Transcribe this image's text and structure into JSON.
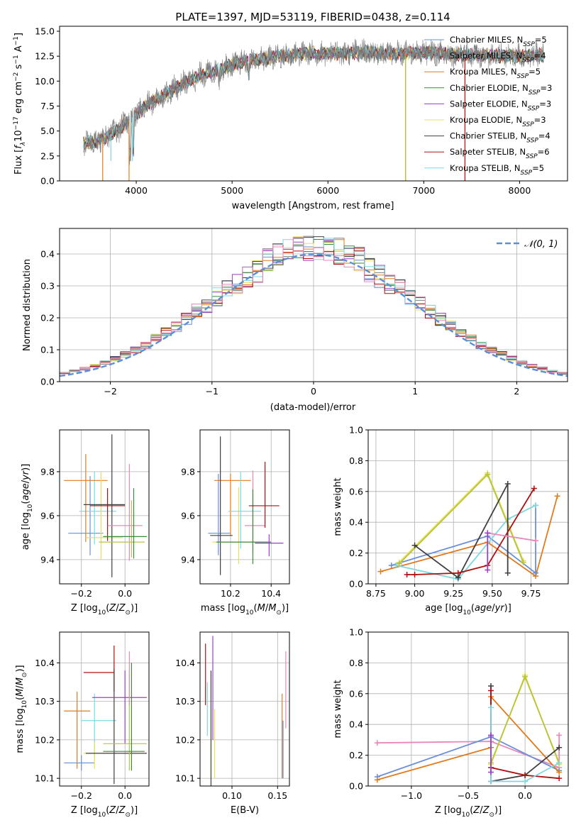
{
  "figure": {
    "title": "PLATE=1397, MJD=53119, FIBERID=0438, z=0.114"
  },
  "colors": {
    "Chabrier MILES": "#6a8fd6",
    "Salpeter MILES": "#7f7f7f",
    "Kroupa MILES": "#e07b1f",
    "Chabrier ELODIE": "#3a8a3a",
    "Salpeter ELODIE": "#9b3fc8",
    "Kroupa ELODIE": "#e8e05a",
    "Chabrier STELIB": "#404040",
    "Salpeter STELIB": "#b01010",
    "Kroupa STELIB": "#7fd7e0",
    "pink": "#e887b8",
    "olive": "#b8c43a",
    "gauss": "#5b8fd6"
  },
  "chart_data": [
    {
      "id": "spectrum",
      "type": "line",
      "xlabel": "wavelength [Angstrom, rest frame]",
      "xlim": [
        3200,
        8500
      ],
      "ylim": [
        0,
        15.5
      ],
      "xticks": [
        4000,
        5000,
        6000,
        7000,
        8000
      ],
      "yticks": [
        0.0,
        2.5,
        5.0,
        7.5,
        10.0,
        12.5,
        15.0
      ],
      "grid": false,
      "legend_placement": "right",
      "legend": [
        {
          "label": "Chabrier MILES, N",
          "n": "5",
          "color": "#6a8fd6"
        },
        {
          "label": "Salpeter MILES, N",
          "n": "4",
          "color": "#7f7f7f"
        },
        {
          "label": "Kroupa MILES, N",
          "n": "5",
          "color": "#e07b1f"
        },
        {
          "label": "Chabrier ELODIE, N",
          "n": "3",
          "color": "#3a8a3a"
        },
        {
          "label": "Salpeter ELODIE, N",
          "n": "3",
          "color": "#9b3fc8"
        },
        {
          "label": "Kroupa ELODIE, N",
          "n": "3",
          "color": "#e8e05a"
        },
        {
          "label": "Chabrier STELIB, N",
          "n": "4",
          "color": "#404040"
        },
        {
          "label": "Salpeter STELIB, N",
          "n": "6",
          "color": "#b01010"
        },
        {
          "label": "Kroupa STELIB, N",
          "n": "5",
          "color": "#7fd7e0"
        }
      ],
      "continuum": {
        "x": [
          3450,
          3600,
          3800,
          3950,
          4100,
          4300,
          4500,
          4700,
          4900,
          5100,
          5300,
          5500,
          5800,
          6100,
          6400,
          6700,
          7000,
          7300,
          7600,
          7900,
          8250
        ],
        "y": [
          3.8,
          4.0,
          5.0,
          6.3,
          7.5,
          8.7,
          9.8,
          10.7,
          11.3,
          11.9,
          12.2,
          12.5,
          12.8,
          12.8,
          12.9,
          12.7,
          12.9,
          12.7,
          12.6,
          12.5,
          12.6
        ]
      },
      "dips": [
        {
          "x": 3650,
          "y": 0.0
        },
        {
          "x": 3735,
          "y": 2.0
        },
        {
          "x": 3925,
          "y": 0.0
        },
        {
          "x": 3960,
          "y": 2.0
        },
        {
          "x": 6810,
          "y": 0.0
        },
        {
          "x": 7430,
          "y": 0.0
        }
      ]
    },
    {
      "id": "residuals",
      "type": "histogram",
      "xlabel": "(data-model)/error",
      "ylabel": "Normed distribution",
      "xlim": [
        -2.5,
        2.5
      ],
      "ylim": [
        0,
        0.48
      ],
      "xticks": [
        -2,
        -1,
        0,
        1,
        2
      ],
      "yticks": [
        0.0,
        0.1,
        0.2,
        0.3,
        0.4
      ],
      "grid": true,
      "bin_width": 0.1,
      "gauss_label": "(0, 1)",
      "legend_placement": "top-right"
    },
    {
      "id": "age-vs-Z",
      "type": "scatter",
      "xlabel": "Z [log",
      "ylabel": "age  [log",
      "xlim": [
        -0.3,
        0.11
      ],
      "ylim": [
        9.29,
        9.99
      ],
      "xticks": [
        -0.2,
        0.0
      ],
      "yticks": [
        9.4,
        9.6,
        9.8
      ],
      "grid": true,
      "points": [
        {
          "x": -0.16,
          "y": 9.52,
          "ex": [
            0.1,
            0.06
          ],
          "ey": [
            0.1,
            0.26
          ],
          "color": "#6a8fd6"
        },
        {
          "x": -0.14,
          "y": 9.62,
          "ex": [
            0.07,
            0.1
          ],
          "ey": [
            0.15,
            0.18
          ],
          "color": "#7fd7e0"
        },
        {
          "x": -0.18,
          "y": 9.76,
          "ex": [
            0.1,
            0.1
          ],
          "ey": [
            0.28,
            0.12
          ],
          "color": "#e07b1f"
        },
        {
          "x": -0.11,
          "y": 9.5,
          "ex": [
            0.07,
            0.1
          ],
          "ey": [
            0.1,
            0.3
          ],
          "color": "#e8e05a"
        },
        {
          "x": -0.06,
          "y": 9.65,
          "ex": [
            0.13,
            0.06
          ],
          "ey": [
            0.33,
            0.32
          ],
          "color": "#404040"
        },
        {
          "x": -0.08,
          "y": 9.645,
          "ex": [
            0.08,
            0.08
          ],
          "ey": [
            0.16,
            0.08
          ],
          "color": "#b01010"
        },
        {
          "x": 0.02,
          "y": 9.555,
          "ex": [
            0.1,
            0.06
          ],
          "ey": [
            0.16,
            0.28
          ],
          "color": "#e887b8"
        },
        {
          "x": 0.03,
          "y": 9.48,
          "ex": [
            0.15,
            0.06
          ],
          "ey": [
            0.07,
            0.19
          ],
          "color": "#b8c43a"
        },
        {
          "x": 0.04,
          "y": 9.505,
          "ex": [
            0.14,
            0.06
          ],
          "ey": [
            0.1,
            0.22
          ],
          "color": "#3a8a3a"
        }
      ]
    },
    {
      "id": "age-vs-mass",
      "type": "scatter",
      "xlabel": "mass [log",
      "xlim": [
        10.05,
        10.49
      ],
      "ylim": [
        9.29,
        9.99
      ],
      "xticks": [
        10.2,
        10.4
      ],
      "yticks": [
        9.4,
        9.6,
        9.8
      ],
      "grid": true,
      "points": [
        {
          "x": 10.14,
          "y": 9.52,
          "ex": [
            0.05,
            0.06
          ],
          "ey": [
            0.1,
            0.27
          ],
          "color": "#6a8fd6"
        },
        {
          "x": 10.2,
          "y": 9.76,
          "ex": [
            0.08,
            0.1
          ],
          "ey": [
            0.25,
            0.03
          ],
          "color": "#e07b1f"
        },
        {
          "x": 10.15,
          "y": 9.51,
          "ex": [
            0.05,
            0.06
          ],
          "ey": [
            0.18,
            0.45
          ],
          "color": "#404040"
        },
        {
          "x": 10.24,
          "y": 9.48,
          "ex": [
            0.13,
            0.06
          ],
          "ey": [
            0.1,
            0.25
          ],
          "color": "#e8e05a"
        },
        {
          "x": 10.25,
          "y": 9.62,
          "ex": [
            0.06,
            0.1
          ],
          "ey": [
            0.17,
            0.18
          ],
          "color": "#7fd7e0"
        },
        {
          "x": 10.31,
          "y": 9.555,
          "ex": [
            0.04,
            0.06
          ],
          "ey": [
            0.12,
            0.25
          ],
          "color": "#e887b8"
        },
        {
          "x": 10.31,
          "y": 9.48,
          "ex": [
            0.18,
            0.09
          ],
          "ey": [
            0.1,
            0.24
          ],
          "color": "#3a8a3a"
        },
        {
          "x": 10.37,
          "y": 9.645,
          "ex": [
            0.08,
            0.07
          ],
          "ey": [
            0.1,
            0.2
          ],
          "color": "#b01010"
        },
        {
          "x": 10.39,
          "y": 9.475,
          "ex": [
            0.07,
            0.07
          ],
          "ey": [
            0.06,
            0.04
          ],
          "color": "#9b3fc8"
        }
      ]
    },
    {
      "id": "weight-vs-age",
      "type": "line",
      "xlabel": "age  [log",
      "ylabel": "mass weight",
      "xlim": [
        8.7,
        9.99
      ],
      "ylim": [
        0,
        1
      ],
      "xticks": [
        8.75,
        9.0,
        9.25,
        9.5,
        9.75
      ],
      "yticks": [
        0.0,
        0.2,
        0.4,
        0.6,
        0.8,
        1.0
      ],
      "grid": true,
      "series": [
        {
          "color": "#e07b1f",
          "x": [
            8.78,
            9.47,
            9.78,
            9.92
          ],
          "y": [
            0.08,
            0.27,
            0.05,
            0.57
          ]
        },
        {
          "color": "#6a8fd6",
          "x": [
            8.85,
            9.47,
            9.78,
            9.78
          ],
          "y": [
            0.12,
            0.31,
            0.07,
            0.51
          ]
        },
        {
          "color": "#7fd7e0",
          "x": [
            8.88,
            9.28,
            9.6,
            9.78
          ],
          "y": [
            0.12,
            0.03,
            0.42,
            0.51
          ]
        },
        {
          "color": "#e8e05a",
          "x": [
            8.9,
            9.47,
            9.7
          ],
          "y": [
            0.14,
            0.72,
            0.15
          ]
        },
        {
          "color": "#b8c43a",
          "x": [
            8.9,
            9.47,
            9.7
          ],
          "y": [
            0.13,
            0.71,
            0.14
          ]
        },
        {
          "color": "#404040",
          "x": [
            9.0,
            9.28,
            9.6,
            9.6
          ],
          "y": [
            0.25,
            0.04,
            0.65,
            0.07
          ]
        },
        {
          "color": "#b01010",
          "x": [
            8.95,
            9.0,
            9.28,
            9.47,
            9.77
          ],
          "y": [
            0.06,
            0.06,
            0.07,
            0.12,
            0.62
          ]
        },
        {
          "color": "#e887b8",
          "x": [
            9.47,
            9.78
          ],
          "y": [
            0.33,
            0.28
          ]
        },
        {
          "color": "#9b3fc8",
          "x": [
            9.47,
            9.47
          ],
          "y": [
            0.09,
            0.33
          ]
        }
      ]
    },
    {
      "id": "mass-vs-Z",
      "type": "scatter",
      "xlabel": "Z [log",
      "ylabel": "mass [log",
      "xlim": [
        -0.3,
        0.11
      ],
      "ylim": [
        10.08,
        10.48
      ],
      "xticks": [
        -0.2,
        0.0
      ],
      "yticks": [
        10.1,
        10.2,
        10.3,
        10.4
      ],
      "grid": true,
      "points": [
        {
          "x": -0.2,
          "y": 10.14,
          "ex": [
            0.08,
            0.06
          ],
          "ey": [
            0.02,
            0.02
          ],
          "color": "#6a8fd6"
        },
        {
          "x": -0.22,
          "y": 10.275,
          "ex": [
            0.06,
            0.06
          ],
          "ey": [
            0.15,
            0.05
          ],
          "color": "#e07b1f"
        },
        {
          "x": -0.14,
          "y": 10.25,
          "ex": [
            0.06,
            0.1
          ],
          "ey": [
            0.1,
            0.07
          ],
          "color": "#7fd7e0"
        },
        {
          "x": -0.14,
          "y": 10.165,
          "ex": [
            0.05,
            0.1
          ],
          "ey": [
            0.04,
            0.03
          ],
          "color": "#e8e05a"
        },
        {
          "x": -0.05,
          "y": 10.375,
          "ex": [
            0.14,
            0.0
          ],
          "ey": [
            0.05,
            0.07
          ],
          "color": "#b01010"
        },
        {
          "x": -0.05,
          "y": 10.165,
          "ex": [
            0.13,
            0.15
          ],
          "ey": [
            0.08,
            0.22
          ],
          "color": "#404040"
        },
        {
          "x": 0.0,
          "y": 10.31,
          "ex": [
            0.15,
            0.1
          ],
          "ey": [
            0.12,
            0.07
          ],
          "color": "#9b3fc8"
        },
        {
          "x": 0.02,
          "y": 10.19,
          "ex": [
            0.12,
            0.08
          ],
          "ey": [
            0.07,
            0.19
          ],
          "color": "#b8c43a"
        },
        {
          "x": 0.03,
          "y": 10.17,
          "ex": [
            0.13,
            0.06
          ],
          "ey": [
            0.05,
            0.23
          ],
          "color": "#3a8a3a"
        },
        {
          "x": 0.02,
          "y": 10.33,
          "ex": [
            0.0,
            0.0
          ],
          "ey": [
            0.04,
            0.1
          ],
          "color": "#e887b8"
        }
      ]
    },
    {
      "id": "mass-vs-EBV",
      "type": "scatter",
      "xlabel": "E(B-V)",
      "xlim": [
        0.065,
        0.163
      ],
      "ylim": [
        10.08,
        10.48
      ],
      "xticks": [
        0.1,
        0.15
      ],
      "yticks": [
        10.1,
        10.2,
        10.3,
        10.4
      ],
      "grid": true,
      "points": [
        {
          "x": 0.071,
          "y": 10.37,
          "ey": [
            0.08,
            0.08
          ],
          "color": "#b01010"
        },
        {
          "x": 0.073,
          "y": 10.27,
          "ey": [
            0.06,
            0.08
          ],
          "color": "#7fd7e0"
        },
        {
          "x": 0.077,
          "y": 10.2,
          "ey": [
            0.12,
            0.18
          ],
          "color": "#404040"
        },
        {
          "x": 0.079,
          "y": 10.3,
          "ey": [
            0.1,
            0.17
          ],
          "color": "#9b3fc8"
        },
        {
          "x": 0.081,
          "y": 10.18,
          "ey": [
            0.08,
            0.1
          ],
          "color": "#e8e05a"
        },
        {
          "x": 0.155,
          "y": 10.2,
          "ey": [
            0.1,
            0.12
          ],
          "color": "#e07b1f"
        },
        {
          "x": 0.156,
          "y": 10.19,
          "ey": [
            0.09,
            0.06
          ],
          "color": "#6a8fd6"
        },
        {
          "x": 0.159,
          "y": 10.33,
          "ey": [
            0.1,
            0.1
          ],
          "color": "#e887b8"
        }
      ]
    },
    {
      "id": "weight-vs-Z",
      "type": "line",
      "xlabel": "Z [log",
      "ylabel": "mass weight",
      "xlim": [
        -1.38,
        0.38
      ],
      "ylim": [
        0,
        1
      ],
      "xticks": [
        -1.0,
        -0.5,
        0.0
      ],
      "yticks": [
        0.0,
        0.2,
        0.4,
        0.6,
        0.8,
        1.0
      ],
      "grid": true,
      "series": [
        {
          "color": "#e887b8",
          "x": [
            -1.3,
            -0.3,
            0.3,
            0.3
          ],
          "y": [
            0.28,
            0.29,
            0.12,
            0.33
          ]
        },
        {
          "color": "#6a8fd6",
          "x": [
            -1.3,
            -0.3,
            0.3
          ],
          "y": [
            0.06,
            0.32,
            0.1
          ]
        },
        {
          "color": "#e07b1f",
          "x": [
            -1.3,
            -0.3,
            -0.3,
            0.3
          ],
          "y": [
            0.04,
            0.25,
            0.58,
            0.09
          ]
        },
        {
          "color": "#e8e05a",
          "x": [
            -0.3,
            0.0,
            0.3
          ],
          "y": [
            0.14,
            0.72,
            0.14
          ]
        },
        {
          "color": "#b8c43a",
          "x": [
            -0.3,
            0.0,
            0.3
          ],
          "y": [
            0.15,
            0.71,
            0.15
          ]
        },
        {
          "color": "#404040",
          "x": [
            -0.3,
            -0.3,
            0.0,
            0.3
          ],
          "y": [
            0.65,
            0.03,
            0.07,
            0.25
          ]
        },
        {
          "color": "#b01010",
          "x": [
            -0.3,
            -0.3,
            0.0,
            0.3
          ],
          "y": [
            0.62,
            0.12,
            0.07,
            0.05
          ]
        },
        {
          "color": "#7fd7e0",
          "x": [
            -0.3,
            -0.3,
            0.0,
            0.3
          ],
          "y": [
            0.51,
            0.03,
            0.03,
            0.15
          ]
        },
        {
          "color": "#9b3fc8",
          "x": [
            -0.3,
            -0.3
          ],
          "y": [
            0.09,
            0.33
          ]
        }
      ]
    }
  ]
}
